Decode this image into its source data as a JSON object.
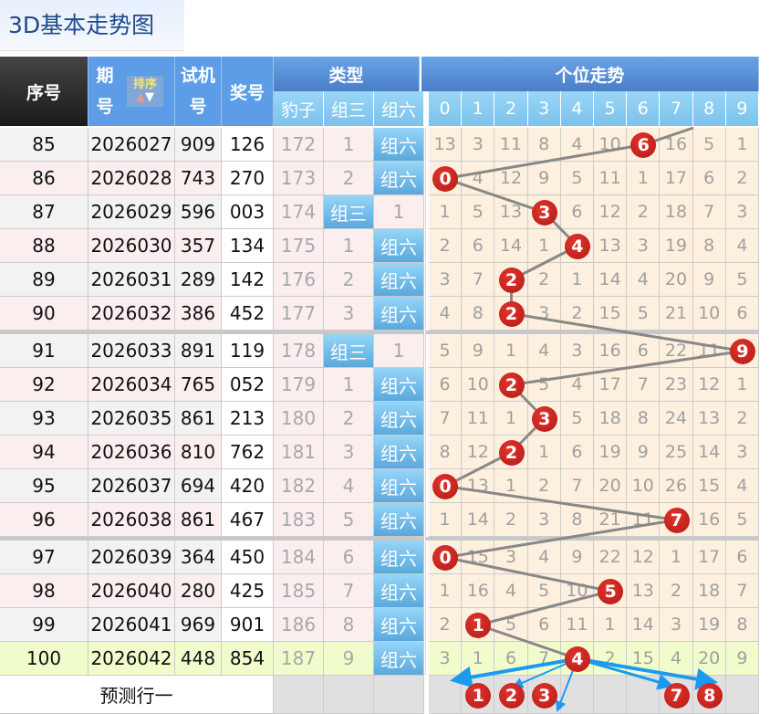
{
  "page_title": "3D基本走势图",
  "header": {
    "seq": "序号",
    "issue": "期号",
    "sort": "排序",
    "trial": "试机号",
    "prize": "奖号",
    "type_group": "类型",
    "type_cols": [
      "豹子",
      "组三",
      "组六"
    ],
    "trend_group": "个位走势",
    "digits": [
      "0",
      "1",
      "2",
      "3",
      "4",
      "5",
      "6",
      "7",
      "8",
      "9"
    ]
  },
  "colors": {
    "accent": "#5d9ce6",
    "ball": "#c8211c",
    "arrow": "#1a9bf0",
    "trend_bg": "#fdf0de",
    "last_row_bg": "#f1fccc"
  },
  "rows": [
    {
      "seq": "85",
      "issue": "2026027",
      "trial": "909",
      "prize": "126",
      "baozi": "172",
      "zu3": "1",
      "zu6": "组六",
      "hit_col": "zu6",
      "trend": [
        13,
        3,
        11,
        8,
        4,
        10,
        6,
        16,
        5,
        1
      ],
      "hit": 6
    },
    {
      "seq": "86",
      "issue": "2026028",
      "trial": "743",
      "prize": "270",
      "baozi": "173",
      "zu3": "2",
      "zu6": "组六",
      "hit_col": "zu6",
      "trend": [
        0,
        4,
        12,
        9,
        5,
        11,
        1,
        17,
        6,
        2
      ],
      "hit": 0
    },
    {
      "seq": "87",
      "issue": "2026029",
      "trial": "596",
      "prize": "003",
      "baozi": "174",
      "zu3": "组三",
      "zu6": "1",
      "hit_col": "zu3",
      "trend": [
        1,
        5,
        13,
        3,
        6,
        12,
        2,
        18,
        7,
        3
      ],
      "hit": 3
    },
    {
      "seq": "88",
      "issue": "2026030",
      "trial": "357",
      "prize": "134",
      "baozi": "175",
      "zu3": "1",
      "zu6": "组六",
      "hit_col": "zu6",
      "trend": [
        2,
        6,
        14,
        1,
        4,
        13,
        3,
        19,
        8,
        4
      ],
      "hit": 4
    },
    {
      "seq": "89",
      "issue": "2026031",
      "trial": "289",
      "prize": "142",
      "baozi": "176",
      "zu3": "2",
      "zu6": "组六",
      "hit_col": "zu6",
      "trend": [
        3,
        7,
        2,
        2,
        1,
        14,
        4,
        20,
        9,
        5
      ],
      "hit": 2
    },
    {
      "seq": "90",
      "issue": "2026032",
      "trial": "386",
      "prize": "452",
      "baozi": "177",
      "zu3": "3",
      "zu6": "组六",
      "hit_col": "zu6",
      "trend": [
        4,
        8,
        2,
        3,
        2,
        15,
        5,
        21,
        10,
        6
      ],
      "hit": 2
    },
    {
      "seq": "91",
      "issue": "2026033",
      "trial": "891",
      "prize": "119",
      "baozi": "178",
      "zu3": "组三",
      "zu6": "1",
      "hit_col": "zu3",
      "trend": [
        5,
        9,
        1,
        4,
        3,
        16,
        6,
        22,
        11,
        9
      ],
      "hit": 9
    },
    {
      "seq": "92",
      "issue": "2026034",
      "trial": "765",
      "prize": "052",
      "baozi": "179",
      "zu3": "1",
      "zu6": "组六",
      "hit_col": "zu6",
      "trend": [
        6,
        10,
        2,
        5,
        4,
        17,
        7,
        23,
        12,
        1
      ],
      "hit": 2
    },
    {
      "seq": "93",
      "issue": "2026035",
      "trial": "861",
      "prize": "213",
      "baozi": "180",
      "zu3": "2",
      "zu6": "组六",
      "hit_col": "zu6",
      "trend": [
        7,
        11,
        1,
        3,
        5,
        18,
        8,
        24,
        13,
        2
      ],
      "hit": 3
    },
    {
      "seq": "94",
      "issue": "2026036",
      "trial": "810",
      "prize": "762",
      "baozi": "181",
      "zu3": "3",
      "zu6": "组六",
      "hit_col": "zu6",
      "trend": [
        8,
        12,
        2,
        1,
        6,
        19,
        9,
        25,
        14,
        3
      ],
      "hit": 2
    },
    {
      "seq": "95",
      "issue": "2026037",
      "trial": "694",
      "prize": "420",
      "baozi": "182",
      "zu3": "4",
      "zu6": "组六",
      "hit_col": "zu6",
      "trend": [
        0,
        13,
        1,
        2,
        7,
        20,
        10,
        26,
        15,
        4
      ],
      "hit": 0
    },
    {
      "seq": "96",
      "issue": "2026038",
      "trial": "861",
      "prize": "467",
      "baozi": "183",
      "zu3": "5",
      "zu6": "组六",
      "hit_col": "zu6",
      "trend": [
        1,
        14,
        2,
        3,
        8,
        21,
        11,
        7,
        16,
        5
      ],
      "hit": 7
    },
    {
      "seq": "97",
      "issue": "2026039",
      "trial": "364",
      "prize": "450",
      "baozi": "184",
      "zu3": "6",
      "zu6": "组六",
      "hit_col": "zu6",
      "trend": [
        0,
        15,
        3,
        4,
        9,
        22,
        12,
        1,
        17,
        6
      ],
      "hit": 0
    },
    {
      "seq": "98",
      "issue": "2026040",
      "trial": "280",
      "prize": "425",
      "baozi": "185",
      "zu3": "7",
      "zu6": "组六",
      "hit_col": "zu6",
      "trend": [
        1,
        16,
        4,
        5,
        10,
        5,
        13,
        2,
        18,
        7
      ],
      "hit": 5
    },
    {
      "seq": "99",
      "issue": "2026041",
      "trial": "969",
      "prize": "901",
      "baozi": "186",
      "zu3": "8",
      "zu6": "组六",
      "hit_col": "zu6",
      "trend": [
        2,
        1,
        5,
        6,
        11,
        1,
        14,
        3,
        19,
        8
      ],
      "hit": 1
    },
    {
      "seq": "100",
      "issue": "2026042",
      "trial": "448",
      "prize": "854",
      "baozi": "187",
      "zu3": "9",
      "zu6": "组六",
      "hit_col": "zu6",
      "trend": [
        3,
        1,
        6,
        7,
        4,
        2,
        15,
        4,
        20,
        9
      ],
      "hit": 4
    }
  ],
  "forecast": {
    "label": "预测行一",
    "balls": [
      "1",
      "2",
      "3",
      "7",
      "8"
    ]
  }
}
